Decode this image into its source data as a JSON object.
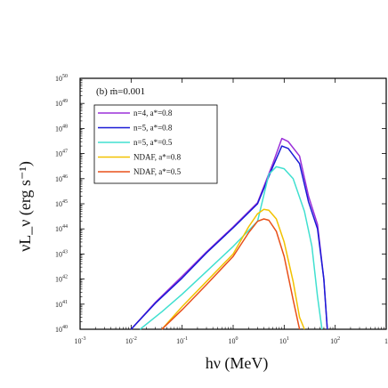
{
  "chart_data": {
    "type": "line",
    "title": "",
    "panel_label": "(b) ṁ=0.001",
    "xlabel": "hν (MeV)",
    "ylabel": "νL_ν (erg s⁻¹)",
    "xscale": "log",
    "yscale": "log",
    "xlim": [
      0.001,
      1000
    ],
    "ylim": [
      1e+40,
      1e+50
    ],
    "x_ticks": [
      {
        "value": 0.001,
        "base": "10",
        "exp": "-3"
      },
      {
        "value": 0.01,
        "base": "10",
        "exp": "-2"
      },
      {
        "value": 0.1,
        "base": "10",
        "exp": "-1"
      },
      {
        "value": 1,
        "base": "10",
        "exp": "0"
      },
      {
        "value": 10,
        "base": "10",
        "exp": "1"
      },
      {
        "value": 100,
        "base": "10",
        "exp": "2"
      },
      {
        "value": 1000,
        "base": "1",
        "exp": ""
      }
    ],
    "y_ticks": [
      {
        "value": 1e+40,
        "base": "10",
        "exp": "40"
      },
      {
        "value": 1e+41,
        "base": "10",
        "exp": "41"
      },
      {
        "value": 1e+42,
        "base": "10",
        "exp": "42"
      },
      {
        "value": 1e+43,
        "base": "10",
        "exp": "43"
      },
      {
        "value": 1e+44,
        "base": "10",
        "exp": "44"
      },
      {
        "value": 1e+45,
        "base": "10",
        "exp": "45"
      },
      {
        "value": 1e+46,
        "base": "10",
        "exp": "46"
      },
      {
        "value": 1e+47,
        "base": "10",
        "exp": "47"
      },
      {
        "value": 1e+48,
        "base": "10",
        "exp": "48"
      },
      {
        "value": 1e+49,
        "base": "10",
        "exp": "49"
      },
      {
        "value": 1e+50,
        "base": "10",
        "exp": "50"
      }
    ],
    "legend_position": "top-left",
    "series": [
      {
        "name": "n=4, a*=0.8",
        "color": "#9b30d9",
        "x": [
          0.01,
          0.03,
          0.1,
          0.3,
          1,
          3,
          6,
          9,
          12,
          20,
          30,
          45,
          60,
          70
        ],
        "y": [
          1e+40,
          1.2e+41,
          1.3e+42,
          1.2e+43,
          1.2e+44,
          1.1e+45,
          4e+46,
          4e+47,
          3e+47,
          8e+46,
          2e+45,
          1.5e+44,
          1e+42,
          1e+40
        ]
      },
      {
        "name": "n=5, a*=0.8",
        "color": "#1a1ad6",
        "x": [
          0.01,
          0.03,
          0.1,
          0.3,
          1,
          3,
          6,
          9,
          12,
          20,
          30,
          45,
          60,
          70
        ],
        "y": [
          1e+40,
          1.1e+41,
          1.1e+42,
          1.1e+43,
          1.1e+44,
          1e+45,
          3e+46,
          2e+47,
          1.6e+47,
          4e+46,
          1.2e+45,
          1e+44,
          1e+42,
          1e+40
        ]
      },
      {
        "name": "n=5, a*=0.5",
        "color": "#40e0d0",
        "x": [
          0.015,
          0.04,
          0.1,
          0.3,
          1,
          3,
          5,
          7,
          10,
          15,
          25,
          35,
          45,
          55
        ],
        "y": [
          1e+40,
          5e+40,
          2.5e+41,
          2e+42,
          2e+43,
          2e+44,
          1.5e+46,
          3e+46,
          2.5e+46,
          1e+46,
          5e+44,
          2e+43,
          2e+41,
          1e+40
        ]
      },
      {
        "name": "NDAF, a*=0.8",
        "color": "#f2c200",
        "x": [
          0.04,
          0.1,
          0.3,
          1,
          2,
          3,
          4,
          5,
          7,
          10,
          15,
          20,
          25
        ],
        "y": [
          1e+40,
          8e+40,
          8e+41,
          1e+43,
          1.2e+44,
          4e+44,
          6e+44,
          5.5e+44,
          2.5e+44,
          3e+43,
          8e+41,
          3e+40,
          1e+40
        ]
      },
      {
        "name": "NDAF, a*=0.5",
        "color": "#e8501a",
        "x": [
          0.04,
          0.1,
          0.3,
          1,
          2,
          3,
          4,
          5,
          7,
          10,
          15,
          20
        ],
        "y": [
          1e+40,
          6e+40,
          6e+41,
          8e+42,
          7e+43,
          2e+44,
          2.5e+44,
          2.2e+44,
          8e+43,
          8e+42,
          1.5e+41,
          1e+40
        ]
      }
    ]
  }
}
